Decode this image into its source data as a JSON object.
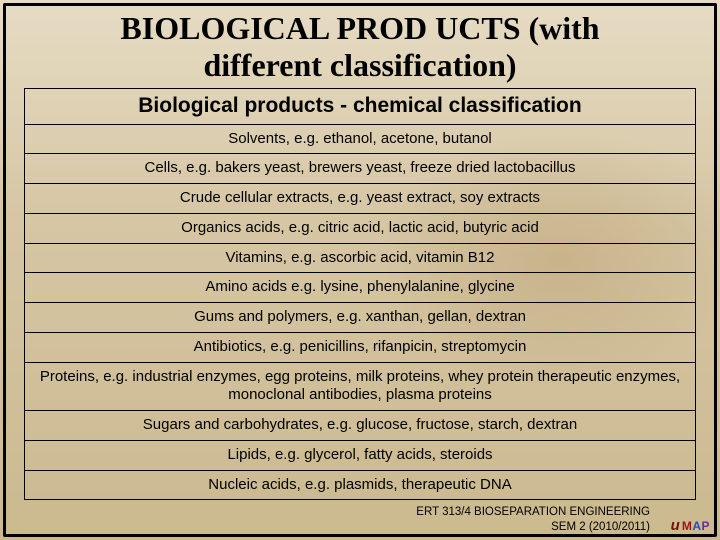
{
  "title_line1": "BIOLOGICAL PROD UCTS (with",
  "title_line2": "different classification)",
  "table": {
    "header": "Biological products - chemical classification",
    "rows": [
      "Solvents, e.g. ethanol, acetone, butanol",
      "Cells, e.g. bakers yeast, brewers yeast, freeze dried lactobacillus",
      "Crude cellular extracts, e.g. yeast extract, soy extracts",
      "Organics acids, e.g. citric acid, lactic acid, butyric acid",
      "Vitamins, e.g. ascorbic acid, vitamin B12",
      "Amino acids e.g. lysine, phenylalanine, glycine",
      "Gums and polymers, e.g. xanthan, gellan, dextran",
      "Antibiotics, e.g. penicillins, rifanpicin, streptomycin",
      "Proteins, e.g. industrial enzymes, egg proteins, milk proteins, whey protein therapeutic enzymes, monoclonal antibodies, plasma proteins",
      "Sugars and carbohydrates, e.g. glucose, fructose, starch, dextran",
      "Lipids, e.g. glycerol, fatty acids, steroids",
      "Nucleic acids, e.g. plasmids, therapeutic DNA"
    ]
  },
  "footer_line1": "ERT 313/4 BIOSEPARATION ENGINEERING",
  "footer_line2": "SEM 2 (2010/2011)",
  "logo": {
    "u": "u",
    "m": "M",
    "a": "A",
    "p": "P"
  }
}
